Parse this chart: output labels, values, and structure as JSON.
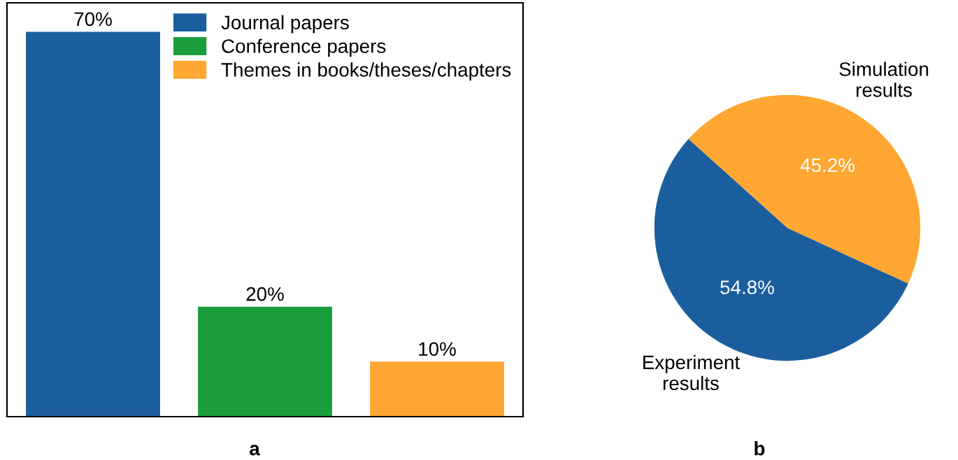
{
  "chart_data": [
    {
      "type": "bar",
      "categories": [
        null,
        null,
        null
      ],
      "stacked": true,
      "legend": "top right",
      "annotations": [
        "a"
      ],
      "series": [
        {
          "name": "Journal papers",
          "color": "#1b5e9e",
          "values": [
            70,
            null,
            null
          ],
          "value_labels": [
            "70%",
            null,
            null
          ]
        },
        {
          "name": "Conference papers",
          "color": "#1a9e3c",
          "values": [
            null,
            20,
            null
          ],
          "value_labels": [
            null,
            "20%",
            null
          ]
        },
        {
          "name": "Themes in books/theses/chapters",
          "color": "#ffa733",
          "values": [
            null,
            null,
            10
          ],
          "value_labels": [
            null,
            null,
            "10%"
          ]
        }
      ]
    },
    {
      "type": "pie",
      "categories": [
        "Experiment\nresults",
        "Simulation\nresults"
      ],
      "values": [
        54.8,
        45.2
      ],
      "colors": [
        "#1b5e9e",
        "#ffa733"
      ],
      "value_labels": [
        "54.8%",
        "45.2%"
      ],
      "annotations": [
        "b"
      ]
    }
  ]
}
